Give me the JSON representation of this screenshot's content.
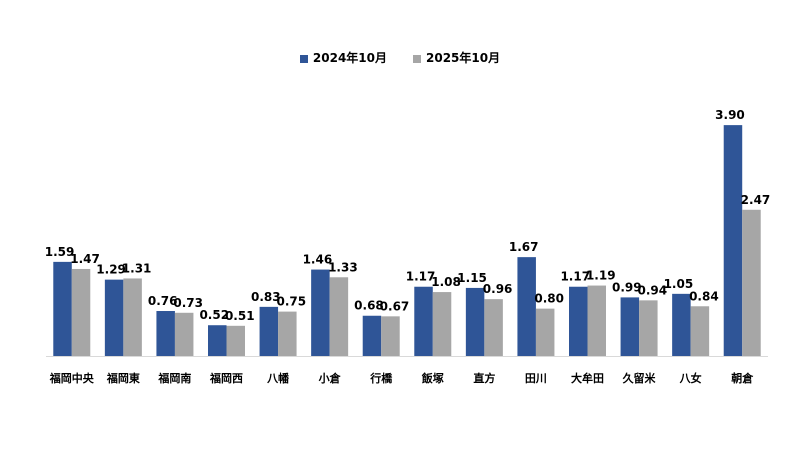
{
  "chart_data": {
    "type": "bar",
    "title": "",
    "xlabel": "",
    "ylabel": "",
    "ylim": [
      0,
      4.0
    ],
    "grid": false,
    "legend_position": "top-center",
    "categories": [
      "福岡中央",
      "福岡東",
      "福岡南",
      "福岡西",
      "八幡",
      "小倉",
      "行橋",
      "飯塚",
      "直方",
      "田川",
      "大牟田",
      "久留米",
      "八女",
      "朝倉"
    ],
    "series": [
      {
        "name": "2024年10月",
        "color": "#2F5597",
        "values": [
          1.59,
          1.29,
          0.76,
          0.52,
          0.83,
          1.46,
          0.68,
          1.17,
          1.15,
          1.67,
          1.17,
          0.99,
          1.05,
          3.9
        ]
      },
      {
        "name": "2025年10月",
        "color": "#A6A6A6",
        "values": [
          1.47,
          1.31,
          0.73,
          0.51,
          0.75,
          1.33,
          0.67,
          1.08,
          0.96,
          0.8,
          1.19,
          0.94,
          0.84,
          2.47
        ]
      }
    ]
  }
}
